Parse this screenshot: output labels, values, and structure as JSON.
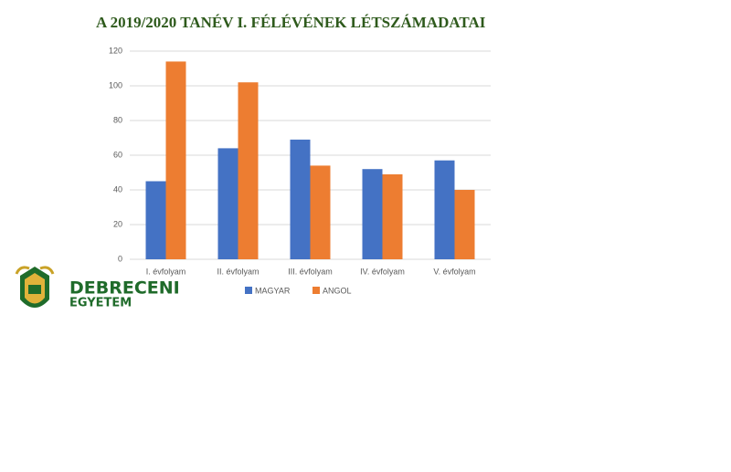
{
  "chart_data": {
    "type": "bar",
    "title": "A 2019/2020 TANÉV I. FÉLÉVÉNEK LÉTSZÁMADATAI",
    "categories": [
      "I. évfolyam",
      "II. évfolyam",
      "III. évfolyam",
      "IV. évfolyam",
      "V. évfolyam"
    ],
    "series": [
      {
        "name": "MAGYAR",
        "color": "#4472c4",
        "values": [
          45,
          64,
          69,
          52,
          57
        ]
      },
      {
        "name": "ANGOL",
        "color": "#ed7d31",
        "values": [
          114,
          102,
          54,
          49,
          40
        ]
      }
    ],
    "ylim": [
      0,
      120
    ],
    "yticks": [
      0,
      20,
      40,
      60,
      80,
      100,
      120
    ],
    "grid": true,
    "legend": "bottom"
  },
  "logo": {
    "line1": "DEBRECENI",
    "line2": "EGYETEM"
  }
}
